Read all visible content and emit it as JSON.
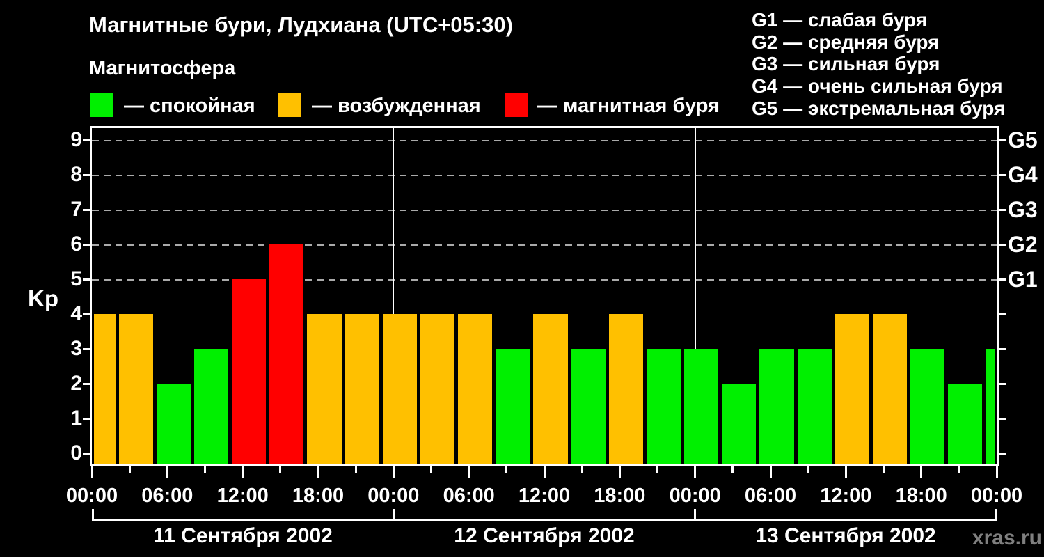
{
  "header": {
    "title": "Магнитные бури, Лудхиана (UTC+05:30)",
    "subtitle": "Магнитосфера"
  },
  "legend": {
    "items": [
      {
        "key": "quiet",
        "label": "— спокойная",
        "color": "#00f000"
      },
      {
        "key": "excited",
        "label": "— возбужденная",
        "color": "#ffc000"
      },
      {
        "key": "storm",
        "label": "— магнитная буря",
        "color": "#ff0000"
      }
    ]
  },
  "g_legend": {
    "items": [
      "G1 — слабая буря",
      "G2 — средняя буря",
      "G3 — сильная буря",
      "G4 — очень сильная буря",
      "G5 — экстремальная буря"
    ]
  },
  "watermark": "xras.ru",
  "chart_data": {
    "type": "bar",
    "title": "Магнитные бури, Лудхиана (UTC+05:30)",
    "ylabel": "Kp",
    "ylim": [
      0,
      9.6
    ],
    "yticks": [
      0,
      1,
      2,
      3,
      4,
      5,
      6,
      7,
      8,
      9
    ],
    "grid_levels": [
      5,
      6,
      7,
      8,
      9
    ],
    "grid_style": "dashed",
    "right_axis_labels": [
      {
        "kp": 5,
        "label": "G1"
      },
      {
        "kp": 6,
        "label": "G2"
      },
      {
        "kp": 7,
        "label": "G3"
      },
      {
        "kp": 8,
        "label": "G4"
      },
      {
        "kp": 9,
        "label": "G5"
      }
    ],
    "x_total_hours": 72,
    "xticks_major_every_h": 6,
    "xticks_minor_every_h": 3,
    "xtick_labels": [
      "00:00",
      "06:00",
      "12:00",
      "18:00",
      "00:00",
      "06:00",
      "12:00",
      "18:00",
      "00:00",
      "06:00",
      "12:00",
      "18:00",
      "00:00"
    ],
    "days": [
      "11 Сентября 2002",
      "12 Сентября 2002",
      "13 Сентября 2002"
    ],
    "state_colors": {
      "quiet": "#00f000",
      "excited": "#ffc000",
      "storm": "#ff0000"
    },
    "bars": [
      {
        "start_h": 0,
        "end_h": 2,
        "kp": 4,
        "state": "excited"
      },
      {
        "start_h": 2,
        "end_h": 5,
        "kp": 4,
        "state": "excited"
      },
      {
        "start_h": 5,
        "end_h": 8,
        "kp": 2,
        "state": "quiet"
      },
      {
        "start_h": 8,
        "end_h": 11,
        "kp": 3,
        "state": "quiet"
      },
      {
        "start_h": 11,
        "end_h": 14,
        "kp": 5,
        "state": "storm"
      },
      {
        "start_h": 14,
        "end_h": 17,
        "kp": 6,
        "state": "storm"
      },
      {
        "start_h": 17,
        "end_h": 20,
        "kp": 4,
        "state": "excited"
      },
      {
        "start_h": 20,
        "end_h": 23,
        "kp": 4,
        "state": "excited"
      },
      {
        "start_h": 23,
        "end_h": 26,
        "kp": 4,
        "state": "excited"
      },
      {
        "start_h": 26,
        "end_h": 29,
        "kp": 4,
        "state": "excited"
      },
      {
        "start_h": 29,
        "end_h": 32,
        "kp": 4,
        "state": "excited"
      },
      {
        "start_h": 32,
        "end_h": 35,
        "kp": 3,
        "state": "quiet"
      },
      {
        "start_h": 35,
        "end_h": 38,
        "kp": 4,
        "state": "excited"
      },
      {
        "start_h": 38,
        "end_h": 41,
        "kp": 3,
        "state": "quiet"
      },
      {
        "start_h": 41,
        "end_h": 44,
        "kp": 4,
        "state": "excited"
      },
      {
        "start_h": 44,
        "end_h": 47,
        "kp": 3,
        "state": "quiet"
      },
      {
        "start_h": 47,
        "end_h": 50,
        "kp": 3,
        "state": "quiet"
      },
      {
        "start_h": 50,
        "end_h": 53,
        "kp": 2,
        "state": "quiet"
      },
      {
        "start_h": 53,
        "end_h": 56,
        "kp": 3,
        "state": "quiet"
      },
      {
        "start_h": 56,
        "end_h": 59,
        "kp": 3,
        "state": "quiet"
      },
      {
        "start_h": 59,
        "end_h": 62,
        "kp": 4,
        "state": "excited"
      },
      {
        "start_h": 62,
        "end_h": 65,
        "kp": 4,
        "state": "excited"
      },
      {
        "start_h": 65,
        "end_h": 68,
        "kp": 3,
        "state": "quiet"
      },
      {
        "start_h": 68,
        "end_h": 71,
        "kp": 2,
        "state": "quiet"
      },
      {
        "start_h": 71,
        "end_h": 72,
        "kp": 3,
        "state": "quiet"
      }
    ],
    "colors": {
      "background": "#000000",
      "axis": "#ffffff",
      "grid": "#aaaaaa",
      "text": "#ffffff",
      "watermark": "#7f7f7f"
    }
  }
}
